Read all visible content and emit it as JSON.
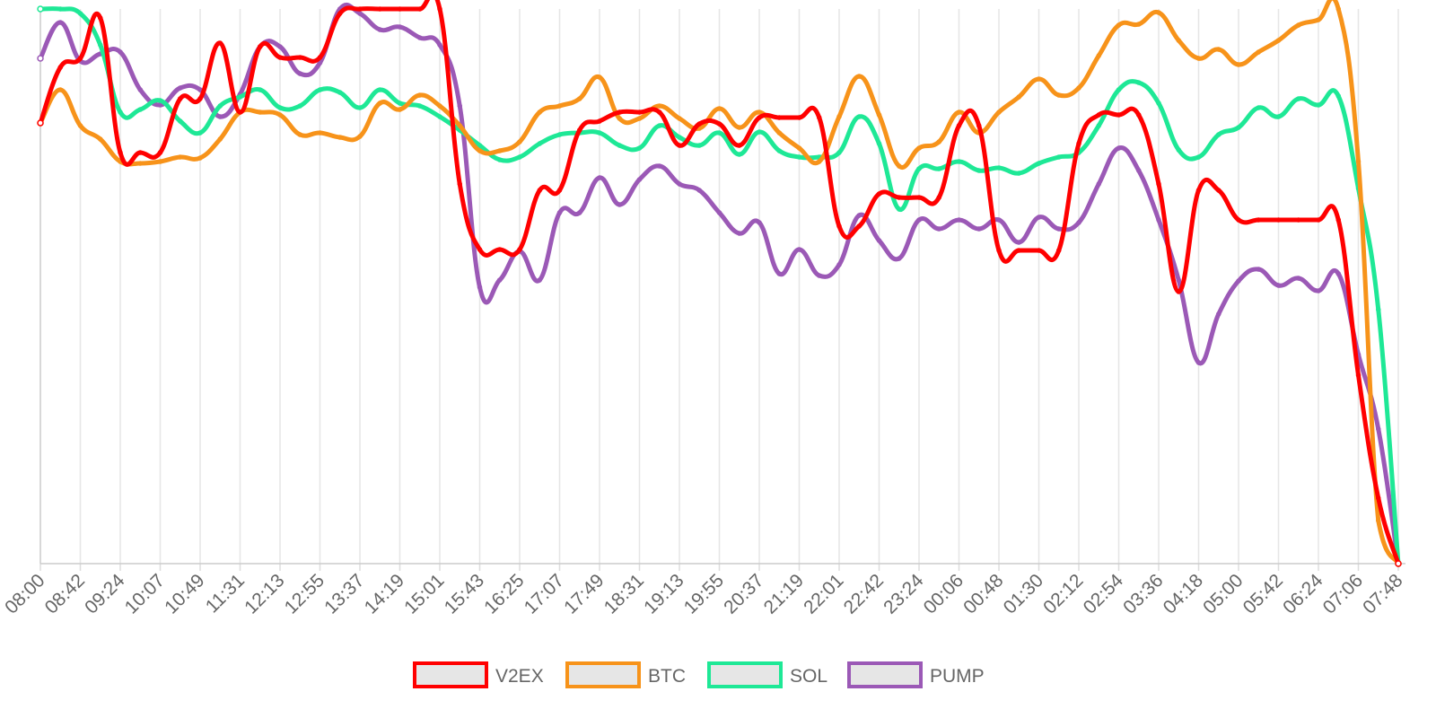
{
  "chart_data": {
    "type": "line",
    "categories": [
      "08:00",
      null,
      "08:42",
      null,
      "09:24",
      null,
      "10:07",
      null,
      "10:49",
      null,
      "11:31",
      null,
      "12:13",
      null,
      "12:55",
      null,
      "13:37",
      null,
      "14:19",
      null,
      "15:01",
      null,
      "15:43",
      null,
      "16:25",
      null,
      "17:07",
      null,
      "17:49",
      null,
      "18:31",
      null,
      "19:13",
      null,
      "19:55",
      null,
      "20:37",
      null,
      "21:19",
      null,
      "22:01",
      null,
      "22:42",
      null,
      "23:24",
      null,
      "00:06",
      null,
      "00:48",
      null,
      "01:30",
      null,
      "02:12",
      null,
      "02:54",
      null,
      "03:36",
      null,
      "04:18",
      null,
      "05:00",
      null,
      "05:42",
      null,
      "06:24",
      null,
      "07:06",
      null,
      "07:48"
    ],
    "series": [
      {
        "name": "V2EX",
        "color": "#ff0000",
        "values": [
          491,
          553,
          563,
          608,
          458,
          458,
          458,
          518,
          518,
          580,
          503,
          576,
          564,
          564,
          564,
          613,
          618,
          618,
          618,
          618,
          618,
          423,
          350,
          350,
          350,
          416,
          416,
          483,
          493,
          503,
          503,
          503,
          466,
          490,
          490,
          466,
          497,
          497,
          497,
          497,
          376,
          376,
          412,
          408,
          408,
          408,
          488,
          488,
          349,
          349,
          349,
          349,
          468,
          500,
          500,
          500,
          423,
          303,
          416,
          416,
          383,
          383,
          383,
          383,
          383,
          383,
          210,
          73,
          0
        ]
      },
      {
        "name": "BTC",
        "color": "#f7931a",
        "values": [
          491,
          528,
          488,
          473,
          448,
          446,
          448,
          453,
          452,
          473,
          503,
          503,
          500,
          478,
          480,
          475,
          476,
          513,
          506,
          522,
          510,
          488,
          460,
          460,
          470,
          503,
          510,
          518,
          542,
          496,
          496,
          510,
          496,
          485,
          507,
          486,
          503,
          480,
          463,
          448,
          498,
          543,
          500,
          443,
          463,
          470,
          503,
          480,
          503,
          520,
          540,
          522,
          530,
          566,
          600,
          601,
          614,
          583,
          563,
          573,
          556,
          570,
          583,
          600,
          606,
          618,
          448,
          48,
          0
        ]
      },
      {
        "name": "SOL",
        "color": "#1ee896",
        "values": [
          618,
          618,
          613,
          578,
          503,
          506,
          516,
          493,
          480,
          510,
          520,
          528,
          508,
          510,
          528,
          525,
          508,
          528,
          513,
          510,
          498,
          483,
          466,
          450,
          453,
          468,
          478,
          480,
          480,
          466,
          463,
          488,
          475,
          466,
          480,
          456,
          481,
          460,
          453,
          453,
          458,
          498,
          468,
          395,
          440,
          440,
          448,
          438,
          441,
          435,
          446,
          453,
          458,
          488,
          528,
          536,
          513,
          461,
          453,
          478,
          486,
          508,
          498,
          518,
          511,
          521,
          418,
          283,
          0
        ]
      },
      {
        "name": "PUMP",
        "color": "#9b59b6",
        "values": [
          563,
          603,
          560,
          568,
          570,
          528,
          511,
          530,
          528,
          498,
          523,
          576,
          576,
          546,
          558,
          618,
          613,
          595,
          598,
          586,
          578,
          510,
          308,
          316,
          348,
          316,
          391,
          391,
          430,
          400,
          428,
          443,
          423,
          416,
          391,
          368,
          380,
          323,
          350,
          321,
          333,
          388,
          360,
          340,
          383,
          373,
          383,
          373,
          383,
          358,
          386,
          373,
          380,
          423,
          463,
          438,
          383,
          316,
          224,
          278,
          315,
          328,
          310,
          318,
          304,
          323,
          233,
          150,
          0
        ]
      }
    ],
    "ylim": [
      0,
      618
    ],
    "grid": true,
    "legend": "bottom"
  }
}
